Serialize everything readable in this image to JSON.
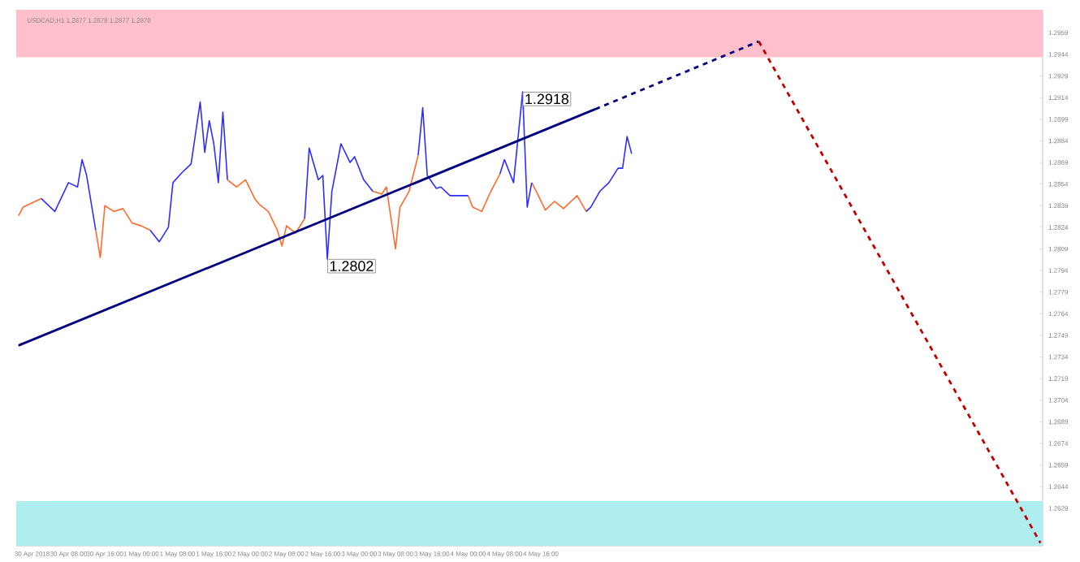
{
  "chart_data": {
    "type": "line",
    "title": "USDCAD,H1  1.2877 1.2878 1.2877 1.2878",
    "x": [
      "2018-04-29T21:00",
      "2018-04-29T22:00",
      "2018-04-30T00:00",
      "2018-04-30T02:00",
      "2018-04-30T05:00",
      "2018-04-30T08:00",
      "2018-04-30T10:00",
      "2018-04-30T11:00",
      "2018-04-30T12:00",
      "2018-04-30T14:00",
      "2018-04-30T15:00",
      "2018-04-30T16:00",
      "2018-04-30T18:00",
      "2018-04-30T20:00",
      "2018-04-30T22:00",
      "2018-05-01T00:00",
      "2018-05-01T02:00",
      "2018-05-01T04:00",
      "2018-05-01T06:00",
      "2018-05-01T07:00",
      "2018-05-01T09:00",
      "2018-05-01T11:00",
      "2018-05-01T13:00",
      "2018-05-01T14:00",
      "2018-05-01T15:00",
      "2018-05-01T16:00",
      "2018-05-01T17:00",
      "2018-05-01T18:00",
      "2018-05-01T19:00",
      "2018-05-01T21:00",
      "2018-05-01T23:00",
      "2018-05-02T01:00",
      "2018-05-02T02:00",
      "2018-05-02T04:00",
      "2018-05-02T06:00",
      "2018-05-02T07:00",
      "2018-05-02T08:00",
      "2018-05-02T10:00",
      "2018-05-02T12:00",
      "2018-05-02T13:00",
      "2018-05-02T15:00",
      "2018-05-02T16:00",
      "2018-05-02T17:00",
      "2018-05-02T18:00",
      "2018-05-02T20:00",
      "2018-05-02T22:00",
      "2018-05-02T23:00",
      "2018-05-03T01:00",
      "2018-05-03T03:00",
      "2018-05-03T05:00",
      "2018-05-03T06:00",
      "2018-05-03T08:00",
      "2018-05-03T09:00",
      "2018-05-03T11:00",
      "2018-05-03T13:00",
      "2018-05-03T14:00",
      "2018-05-03T15:00",
      "2018-05-03T17:00",
      "2018-05-03T18:00",
      "2018-05-03T20:00",
      "2018-05-04T00:00",
      "2018-05-04T01:00",
      "2018-05-04T03:00",
      "2018-05-04T05:00",
      "2018-05-04T07:00",
      "2018-05-04T08:00",
      "2018-05-04T10:00",
      "2018-05-04T12:00",
      "2018-05-04T13:00",
      "2018-05-04T14:00",
      "2018-05-04T15:00",
      "2018-05-04T17:00",
      "2018-05-04T19:00",
      "2018-05-04T21:00",
      "2018-05-05T00:00",
      "2018-05-05T02:00",
      "2018-05-05T03:00",
      "2018-05-05T05:00",
      "2018-05-05T07:00",
      "2018-05-05T09:00",
      "2018-05-05T10:00",
      "2018-05-05T11:00",
      "2018-05-05T12:00"
    ],
    "series": [
      {
        "color": "#ff6a2b",
        "values": [
          1.2832,
          1.2838,
          1.2841,
          1.2844,
          null,
          null,
          null,
          null,
          null,
          1.2822,
          1.2803,
          1.2839,
          1.2835,
          1.2837,
          1.2827,
          1.2825,
          1.2822,
          null,
          null,
          null,
          null,
          null,
          null,
          null,
          null,
          null,
          null,
          null,
          1.2857,
          1.2852,
          1.2857,
          1.2844,
          1.284,
          1.2835,
          1.2822,
          1.2811,
          1.2825,
          1.282,
          1.283,
          null,
          null,
          null,
          null,
          null,
          null,
          null,
          null,
          null,
          1.2849,
          1.2847,
          1.2852,
          1.2809,
          1.2838,
          1.2849,
          1.2874,
          null,
          null,
          null,
          null,
          null,
          1.2846,
          1.2838,
          1.2835,
          1.2849,
          1.2861,
          null,
          null,
          null,
          null,
          1.2855,
          1.2849,
          1.2836,
          1.2842,
          1.2837,
          1.2846,
          1.2835,
          null,
          null,
          null,
          null,
          null,
          null,
          null
        ]
      },
      {
        "color": "#2d2dff",
        "values": [
          null,
          null,
          null,
          1.2844,
          1.2835,
          1.2855,
          1.2852,
          1.2871,
          1.286,
          1.2822,
          null,
          null,
          null,
          null,
          null,
          null,
          1.2822,
          1.2814,
          1.2824,
          1.2855,
          1.2862,
          1.2868,
          1.2911,
          1.2876,
          1.2898,
          1.2882,
          1.2855,
          1.2904,
          1.2857,
          null,
          null,
          null,
          null,
          null,
          null,
          null,
          null,
          null,
          1.283,
          1.2879,
          1.2857,
          1.286,
          1.2802,
          1.2849,
          1.2882,
          1.2869,
          1.2873,
          1.2857,
          1.2849,
          null,
          null,
          null,
          null,
          null,
          1.2874,
          1.2907,
          1.286,
          1.2851,
          1.2852,
          1.2846,
          1.2846,
          null,
          null,
          null,
          1.2861,
          1.2871,
          1.2855,
          1.2918,
          1.2838,
          1.2855,
          null,
          null,
          null,
          null,
          null,
          1.2835,
          1.2838,
          1.2849,
          1.2855,
          1.2865,
          1.2865,
          1.2887,
          1.2875
        ]
      },
      {
        "color": "#000080",
        "x": [
          "2018-04-29T21:00",
          "2018-05-05T04:00"
        ],
        "values": [
          1.2742,
          1.2906
        ]
      },
      {
        "color": "#000080",
        "line_style": "dashed",
        "x": [
          "2018-05-05T04:00",
          "2018-05-06T16:00"
        ],
        "values": [
          1.2906,
          1.2953
        ]
      },
      {
        "color": "#c00000",
        "line_style": "dashed",
        "x": [
          "2018-05-06T16:00",
          "2018-05-09T06:00"
        ],
        "values": [
          1.2953,
          1.2605
        ]
      }
    ],
    "xlim": [
      "2018-04-29T20:30",
      "2018-05-09T06:30"
    ],
    "ylim": [
      1.2603,
      1.2975
    ],
    "xticks": [
      {
        "value": "2018-04-30T00:00",
        "label": "30 Apr 2018"
      },
      {
        "value": "2018-04-30T08:00",
        "label": "30 Apr 08:00"
      },
      {
        "value": "2018-04-30T16:00",
        "label": "30 Apr 16:00"
      },
      {
        "value": "2018-05-01T00:00",
        "label": "1 May 00:00"
      },
      {
        "value": "2018-05-01T08:00",
        "label": "1 May 08:00"
      },
      {
        "value": "2018-05-01T16:00",
        "label": "1 May 16:00"
      },
      {
        "value": "2018-05-02T00:00",
        "label": "2 May 00:00"
      },
      {
        "value": "2018-05-02T08:00",
        "label": "2 May 08:00"
      },
      {
        "value": "2018-05-02T16:00",
        "label": "2 May 16:00"
      },
      {
        "value": "2018-05-03T00:00",
        "label": "3 May 00:00"
      },
      {
        "value": "2018-05-03T08:00",
        "label": "3 May 08:00"
      },
      {
        "value": "2018-05-03T16:00",
        "label": "3 May 16:00"
      },
      {
        "value": "2018-05-04T00:00",
        "label": "4 May 00:00"
      },
      {
        "value": "2018-05-04T08:00",
        "label": "4 May 08:00"
      },
      {
        "value": "2018-05-04T16:00",
        "label": "4 May 16:00"
      }
    ],
    "yticks": [
      1.2629,
      1.2644,
      1.2659,
      1.2674,
      1.2689,
      1.2704,
      1.2719,
      1.2734,
      1.2749,
      1.2764,
      1.2779,
      1.2794,
      1.2809,
      1.2824,
      1.2839,
      1.2854,
      1.2869,
      1.2884,
      1.2899,
      1.2914,
      1.2929,
      1.2944,
      1.2959
    ],
    "bands": [
      {
        "axis": "y",
        "from": 1.2942,
        "to": 1.2975,
        "color": "#ffc0cb"
      },
      {
        "axis": "y",
        "from": 1.2603,
        "to": 1.2634,
        "color": "#afeeee"
      }
    ],
    "annotations": [
      {
        "text": "1.2802",
        "x": "2018-05-02T17:00",
        "y": 1.2802
      },
      {
        "text": "1.2918",
        "x": "2018-05-04T12:00",
        "y": 1.2918
      }
    ]
  }
}
